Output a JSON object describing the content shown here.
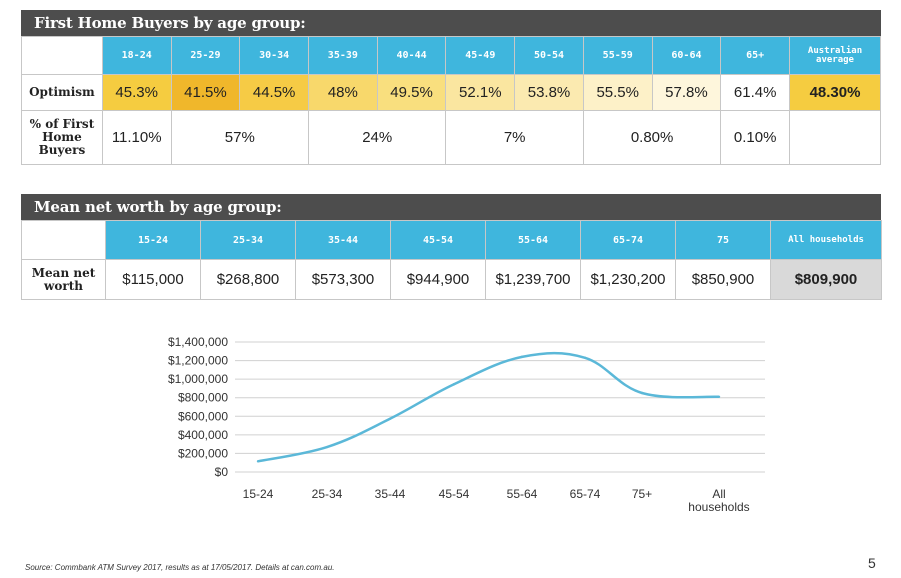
{
  "table1": {
    "title": "First Home Buyers by age group:",
    "headers": [
      "18-24",
      "25-29",
      "30-34",
      "35-39",
      "40-44",
      "45-49",
      "50-54",
      "55-59",
      "60-64",
      "65+",
      "Australian average"
    ],
    "optimism_label": "Optimism",
    "optimism": [
      "45.3%",
      "41.5%",
      "44.5%",
      "48%",
      "49.5%",
      "52.1%",
      "53.8%",
      "55.5%",
      "57.8%",
      "61.4%",
      "48.30%"
    ],
    "optimism_colors": [
      "#f5cc40",
      "#f0b72b",
      "#f6cb45",
      "#f8d86b",
      "#f9df7e",
      "#fae6a0",
      "#fbeab0",
      "#fdf1c8",
      "#fef6dc",
      "#ffffff",
      "#f5cc40"
    ],
    "fhb_label": "% of First Home Buyers",
    "fhb": [
      "11.10%",
      "57%",
      "24%",
      "7%",
      "0.80%",
      "0.10%",
      ""
    ]
  },
  "table2": {
    "title": "Mean net worth by age group:",
    "headers": [
      "15-24",
      "25-34",
      "35-44",
      "45-54",
      "55-64",
      "65-74",
      "75",
      "All households"
    ],
    "row_label": "Mean net worth",
    "values": [
      "$115,000",
      "$268,800",
      "$573,300",
      "$944,900",
      "$1,239,700",
      "$1,230,200",
      "$850,900",
      "$809,900"
    ]
  },
  "chart_data": {
    "type": "line",
    "categories": [
      "15-24",
      "25-34",
      "35-44",
      "45-54",
      "55-64",
      "65-74",
      "75+",
      "All households"
    ],
    "series": [
      {
        "values": [
          115000,
          268800,
          573300,
          944900,
          1239700,
          1230200,
          850900,
          809900
        ],
        "color": "#5bb8d8"
      }
    ],
    "y_ticks": [
      "$0",
      "$200,000",
      "$400,000",
      "$600,000",
      "$800,000",
      "$1,000,000",
      "$1,200,000",
      "$1,400,000"
    ],
    "ylim": [
      0,
      1400000
    ],
    "grid": true
  },
  "footer": {
    "source": "Source: Commbank ATM Survey 2017,  results as at 17/05/2017. Details at can.com.au.",
    "page": "5"
  }
}
